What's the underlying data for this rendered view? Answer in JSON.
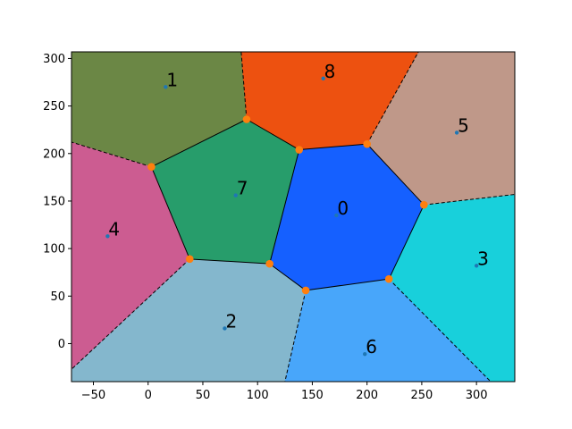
{
  "chart_data": {
    "type": "voronoi",
    "title": "",
    "xlabel": "",
    "ylabel": "",
    "xlim": [
      -70,
      335
    ],
    "ylim": [
      -40,
      307
    ],
    "xticks": [
      -50,
      0,
      50,
      100,
      150,
      200,
      250,
      300
    ],
    "yticks": [
      0,
      50,
      100,
      150,
      200,
      250,
      300
    ],
    "xtick_labels": [
      "−50",
      "0",
      "50",
      "100",
      "150",
      "200",
      "250",
      "300"
    ],
    "ytick_labels": [
      "0",
      "50",
      "100",
      "150",
      "200",
      "250",
      "300"
    ],
    "grid": false,
    "regions": [
      {
        "label": "0",
        "color": "#1560ff",
        "site": [
          172,
          135
        ],
        "polygon": [
          [
            138,
            204
          ],
          [
            200,
            210
          ],
          [
            252,
            146
          ],
          [
            220,
            68
          ],
          [
            144,
            56
          ],
          [
            111,
            84
          ]
        ]
      },
      {
        "label": "1",
        "color": "#6b8745",
        "site": [
          16,
          270
        ],
        "polygon": [
          [
            -70,
            307
          ],
          [
            85,
            307
          ],
          [
            90,
            236
          ],
          [
            3,
            186
          ],
          [
            -70,
            212
          ]
        ]
      },
      {
        "label": "2",
        "color": "#84b7cd",
        "site": [
          70,
          16
        ],
        "polygon": [
          [
            38,
            89
          ],
          [
            111,
            84
          ],
          [
            144,
            56
          ],
          [
            125,
            -40
          ],
          [
            -70,
            -40
          ],
          [
            -70,
            -27
          ]
        ]
      },
      {
        "label": "3",
        "color": "#18d0db",
        "site": [
          300,
          82
        ],
        "polygon": [
          [
            252,
            146
          ],
          [
            335,
            157
          ],
          [
            335,
            -40
          ],
          [
            313,
            -40
          ],
          [
            220,
            68
          ]
        ]
      },
      {
        "label": "4",
        "color": "#cc5c91",
        "site": [
          -37,
          113
        ],
        "polygon": [
          [
            -70,
            212
          ],
          [
            3,
            186
          ],
          [
            38,
            89
          ],
          [
            -70,
            -27
          ]
        ]
      },
      {
        "label": "5",
        "color": "#bf9889",
        "site": [
          282,
          222
        ],
        "polygon": [
          [
            200,
            210
          ],
          [
            247,
            307
          ],
          [
            335,
            307
          ],
          [
            335,
            157
          ],
          [
            252,
            146
          ]
        ]
      },
      {
        "label": "6",
        "color": "#48a6fa",
        "site": [
          198,
          -11
        ],
        "polygon": [
          [
            144,
            56
          ],
          [
            220,
            68
          ],
          [
            313,
            -40
          ],
          [
            125,
            -40
          ]
        ]
      },
      {
        "label": "7",
        "color": "#279d6b",
        "site": [
          80,
          156
        ],
        "polygon": [
          [
            3,
            186
          ],
          [
            90,
            236
          ],
          [
            138,
            204
          ],
          [
            111,
            84
          ],
          [
            38,
            89
          ]
        ]
      },
      {
        "label": "8",
        "color": "#ed5110",
        "site": [
          160,
          279
        ],
        "polygon": [
          [
            85,
            307
          ],
          [
            247,
            307
          ],
          [
            200,
            210
          ],
          [
            138,
            204
          ],
          [
            90,
            236
          ]
        ]
      }
    ],
    "vertices": [
      [
        90,
        236
      ],
      [
        138,
        204
      ],
      [
        200,
        210
      ],
      [
        252,
        146
      ],
      [
        220,
        68
      ],
      [
        144,
        56
      ],
      [
        111,
        84
      ],
      [
        38,
        89
      ],
      [
        3,
        186
      ]
    ],
    "finite_edges": [
      [
        [
          90,
          236
        ],
        [
          138,
          204
        ]
      ],
      [
        [
          138,
          204
        ],
        [
          200,
          210
        ]
      ],
      [
        [
          200,
          210
        ],
        [
          252,
          146
        ]
      ],
      [
        [
          252,
          146
        ],
        [
          220,
          68
        ]
      ],
      [
        [
          220,
          68
        ],
        [
          144,
          56
        ]
      ],
      [
        [
          144,
          56
        ],
        [
          111,
          84
        ]
      ],
      [
        [
          111,
          84
        ],
        [
          38,
          89
        ]
      ],
      [
        [
          38,
          89
        ],
        [
          3,
          186
        ]
      ],
      [
        [
          3,
          186
        ],
        [
          90,
          236
        ]
      ],
      [
        [
          138,
          204
        ],
        [
          111,
          84
        ]
      ]
    ],
    "infinite_edges": [
      [
        [
          200,
          210
        ],
        [
          247,
          307
        ]
      ],
      [
        [
          252,
          146
        ],
        [
          335,
          157
        ]
      ],
      [
        [
          220,
          68
        ],
        [
          313,
          -40
        ]
      ],
      [
        [
          144,
          56
        ],
        [
          125,
          -40
        ]
      ],
      [
        [
          38,
          89
        ],
        [
          -70,
          -27
        ]
      ],
      [
        [
          3,
          186
        ],
        [
          -70,
          212
        ]
      ],
      [
        [
          90,
          236
        ],
        [
          85,
          307
        ]
      ]
    ],
    "colors": {
      "site": "#1f77b4",
      "vertex": "#ff7f0e",
      "edge": "#000000"
    }
  }
}
